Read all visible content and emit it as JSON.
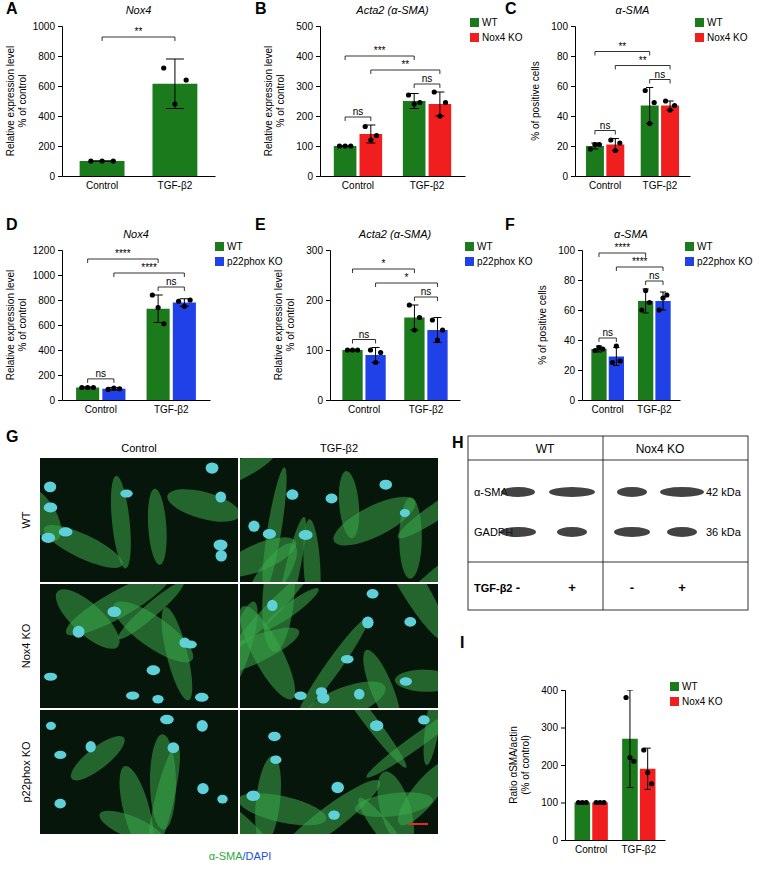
{
  "chart_data": [
    {
      "type": "bar",
      "label": "A",
      "title": "Nox4",
      "y_label": [
        "Relative expression level",
        "% of control"
      ],
      "categories": [
        "Control",
        "TGF-β2"
      ],
      "values": [
        100,
        615
      ],
      "error": [
        0,
        165
      ],
      "points": [
        [
          100,
          100,
          100
        ],
        [
          720,
          480,
          640
        ]
      ],
      "color": "#1b7a1b",
      "ylim": [
        0,
        1000
      ],
      "yticks": [
        0,
        200,
        400,
        600,
        800,
        1000
      ],
      "significance": [
        {
          "a": [
            0,
            0
          ],
          "b": [
            0,
            1
          ],
          "label": "**"
        }
      ]
    },
    {
      "type": "bar",
      "label": "B",
      "title": "Acta2 (α-SMA)",
      "y_label": [
        "Relative expression level",
        "% of control"
      ],
      "categories": [
        "Control",
        "TGF-β2"
      ],
      "series": [
        {
          "name": "WT",
          "color": "#1b7a1b",
          "values": [
            100,
            250
          ],
          "error": [
            0,
            25
          ],
          "points": [
            [
              100,
              100,
              100
            ],
            [
              270,
              240,
              245
            ]
          ]
        },
        {
          "name": "Nox4 KO",
          "color": "#f01e1e",
          "values": [
            140,
            240
          ],
          "error": [
            30,
            40
          ],
          "points": [
            [
              165,
              120,
              135
            ],
            [
              280,
              200,
              245
            ]
          ]
        }
      ],
      "ylim": [
        0,
        500
      ],
      "yticks": [
        0,
        100,
        200,
        300,
        400,
        500
      ],
      "legend": "top-right",
      "significance": [
        {
          "a": [
            0,
            0
          ],
          "b": [
            1,
            0
          ],
          "label": "ns"
        },
        {
          "a": [
            0,
            1
          ],
          "b": [
            1,
            1
          ],
          "label": "ns"
        },
        {
          "a": [
            1,
            0
          ],
          "b": [
            1,
            1
          ],
          "label": "**"
        },
        {
          "a": [
            0,
            0
          ],
          "b": [
            0,
            1
          ],
          "label": "***"
        }
      ]
    },
    {
      "type": "bar",
      "label": "C",
      "title": "α-SMA",
      "y_label": [
        "% of positive cells"
      ],
      "categories": [
        "Control",
        "TGF-β2"
      ],
      "series": [
        {
          "name": "WT",
          "color": "#1b7a1b",
          "values": [
            20,
            47
          ],
          "error": [
            2,
            12
          ],
          "points": [
            [
              18,
              21,
              21
            ],
            [
              57,
              35,
              49
            ]
          ]
        },
        {
          "name": "Nox4 KO",
          "color": "#f01e1e",
          "values": [
            21,
            47
          ],
          "error": [
            4,
            3
          ],
          "points": [
            [
              24,
              17,
              22
            ],
            [
              50,
              44,
              47
            ]
          ]
        }
      ],
      "ylim": [
        0,
        100
      ],
      "yticks": [
        0,
        20,
        40,
        60,
        80,
        100
      ],
      "legend": "top-right",
      "significance": [
        {
          "a": [
            0,
            0
          ],
          "b": [
            1,
            0
          ],
          "label": "ns"
        },
        {
          "a": [
            0,
            1
          ],
          "b": [
            1,
            1
          ],
          "label": "ns"
        },
        {
          "a": [
            1,
            0
          ],
          "b": [
            1,
            1
          ],
          "label": "**"
        },
        {
          "a": [
            0,
            0
          ],
          "b": [
            0,
            1
          ],
          "label": "**"
        }
      ]
    },
    {
      "type": "bar",
      "label": "D",
      "title": "Nox4",
      "y_label": [
        "Relative expression level",
        "% of control"
      ],
      "categories": [
        "Control",
        "TGF-β2"
      ],
      "series": [
        {
          "name": "WT",
          "color": "#1b7a1b",
          "values": [
            100,
            730
          ],
          "error": [
            5,
            110
          ],
          "points": [
            [
              100,
              100,
              100
            ],
            [
              840,
              740,
              610
            ]
          ]
        },
        {
          "name": "p22phox KO",
          "color": "#2040e8",
          "values": [
            90,
            780
          ],
          "error": [
            10,
            30
          ],
          "points": [
            [
              85,
              95,
              90
            ],
            [
              790,
              750,
              800
            ]
          ]
        }
      ],
      "ylim": [
        0,
        1200
      ],
      "yticks": [
        0,
        200,
        400,
        600,
        800,
        1000,
        1200
      ],
      "legend": "top-right",
      "significance": [
        {
          "a": [
            0,
            0
          ],
          "b": [
            1,
            0
          ],
          "label": "ns"
        },
        {
          "a": [
            0,
            1
          ],
          "b": [
            1,
            1
          ],
          "label": "ns"
        },
        {
          "a": [
            1,
            0
          ],
          "b": [
            1,
            1
          ],
          "label": "****"
        },
        {
          "a": [
            0,
            0
          ],
          "b": [
            0,
            1
          ],
          "label": "****"
        }
      ]
    },
    {
      "type": "bar",
      "label": "E",
      "title": "Acta2 (α-SMA)",
      "y_label": [
        "Relative expression level",
        "% of control"
      ],
      "categories": [
        "Control",
        "TGF-β2"
      ],
      "series": [
        {
          "name": "WT",
          "color": "#1b7a1b",
          "values": [
            100,
            165
          ],
          "error": [
            0,
            25
          ],
          "points": [
            [
              100,
              100,
              100
            ],
            [
              190,
              140,
              165
            ]
          ]
        },
        {
          "name": "p22phox KO",
          "color": "#2040e8",
          "values": [
            90,
            140
          ],
          "error": [
            15,
            25
          ],
          "points": [
            [
              100,
              75,
              95
            ],
            [
              160,
              120,
              140
            ]
          ]
        }
      ],
      "ylim": [
        0,
        300
      ],
      "yticks": [
        0,
        100,
        200,
        300
      ],
      "legend": "top-right",
      "significance": [
        {
          "a": [
            0,
            0
          ],
          "b": [
            1,
            0
          ],
          "label": "ns"
        },
        {
          "a": [
            0,
            1
          ],
          "b": [
            1,
            1
          ],
          "label": "ns"
        },
        {
          "a": [
            1,
            0
          ],
          "b": [
            1,
            1
          ],
          "label": "*"
        },
        {
          "a": [
            0,
            0
          ],
          "b": [
            0,
            1
          ],
          "label": "*"
        }
      ]
    },
    {
      "type": "bar",
      "label": "F",
      "title": "α-SMA",
      "y_label": [
        "% of positive cells"
      ],
      "categories": [
        "Control",
        "TGF-β2"
      ],
      "series": [
        {
          "name": "WT",
          "color": "#1b7a1b",
          "values": [
            34,
            66
          ],
          "error": [
            2,
            8
          ],
          "points": [
            [
              33,
              35,
              34
            ],
            [
              60,
              73,
              65
            ]
          ]
        },
        {
          "name": "p22phox KO",
          "color": "#2040e8",
          "values": [
            29,
            66
          ],
          "error": [
            6,
            6
          ],
          "points": [
            [
              25,
              36,
              26
            ],
            [
              60,
              68,
              70
            ]
          ]
        }
      ],
      "ylim": [
        0,
        100
      ],
      "yticks": [
        0,
        20,
        40,
        60,
        80,
        100
      ],
      "legend": "top-right",
      "significance": [
        {
          "a": [
            0,
            0
          ],
          "b": [
            1,
            0
          ],
          "label": "ns"
        },
        {
          "a": [
            0,
            1
          ],
          "b": [
            1,
            1
          ],
          "label": "ns"
        },
        {
          "a": [
            1,
            0
          ],
          "b": [
            1,
            1
          ],
          "label": "****"
        },
        {
          "a": [
            0,
            0
          ],
          "b": [
            0,
            1
          ],
          "label": "****"
        }
      ]
    },
    {
      "type": "bar",
      "label": "I",
      "y_label": [
        "Ratio αSMA/actin",
        "(% of control)"
      ],
      "categories": [
        "Control",
        "TGF-β2"
      ],
      "series": [
        {
          "name": "WT",
          "color": "#1b7a1b",
          "values": [
            100,
            270
          ],
          "error": [
            0,
            130
          ],
          "points": [
            [
              100,
              100,
              100
            ],
            [
              380,
              220,
              210
            ]
          ]
        },
        {
          "name": "Nox4 KO",
          "color": "#f01e1e",
          "values": [
            100,
            190
          ],
          "error": [
            0,
            55
          ],
          "points": [
            [
              100,
              100,
              100
            ],
            [
              240,
              180,
              150
            ]
          ]
        }
      ],
      "ylim": [
        0,
        400
      ],
      "yticks": [
        0,
        100,
        200,
        300,
        400
      ],
      "legend": "top-right"
    }
  ],
  "images": {
    "label": "G",
    "columns": [
      "Control",
      "TGF-β2"
    ],
    "rows": [
      "WT",
      "Nox4 KO",
      "p22phox KO"
    ],
    "caption": [
      "α-SMA",
      "/DAPI"
    ]
  },
  "blot": {
    "label": "H",
    "groups": [
      "WT",
      "Nox4 KO"
    ],
    "rows": [
      {
        "name": "α-SMA",
        "size": "42 kDa"
      },
      {
        "name": "GADPH",
        "size": "36 kDa"
      }
    ],
    "treatment": "TGF-β2",
    "lanes": [
      "-",
      "+",
      "-",
      "+"
    ]
  }
}
